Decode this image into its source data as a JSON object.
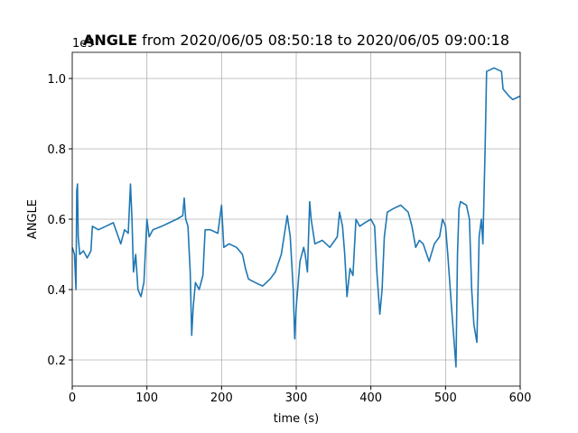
{
  "chart_data": {
    "type": "line",
    "title_bold": "ANGLE",
    "title": "from 2020/06/05 08:50:18 to 2020/06/05 09:00:18",
    "x_label": "time (s)",
    "y_label": "ANGLE",
    "y_offset_label": "1e9",
    "x": [
      0,
      3,
      5,
      6,
      7,
      8,
      10,
      15,
      20,
      25,
      27,
      35,
      45,
      55,
      60,
      65,
      70,
      75,
      78,
      80,
      82,
      85,
      88,
      92,
      96,
      100,
      103,
      108,
      120,
      130,
      140,
      148,
      150,
      152,
      155,
      158,
      160,
      162,
      165,
      170,
      175,
      178,
      185,
      195,
      200,
      203,
      210,
      220,
      228,
      232,
      236,
      245,
      255,
      265,
      272,
      280,
      288,
      292,
      296,
      298,
      300,
      305,
      310,
      312,
      315,
      318,
      320,
      325,
      335,
      345,
      355,
      358,
      362,
      365,
      368,
      372,
      376,
      380,
      385,
      392,
      400,
      405,
      408,
      412,
      415,
      418,
      422,
      430,
      440,
      450,
      455,
      460,
      465,
      470,
      478,
      485,
      492,
      496,
      500,
      503,
      508,
      514,
      516,
      518,
      520,
      528,
      532,
      535,
      538,
      542,
      545,
      548,
      550,
      553,
      555,
      565,
      575,
      577,
      585,
      590,
      600
    ],
    "series": [
      {
        "name": "ANGLE",
        "color": "#1f77b4",
        "values": [
          0.52,
          0.5,
          0.4,
          0.68,
          0.7,
          0.55,
          0.5,
          0.51,
          0.49,
          0.51,
          0.58,
          0.57,
          0.58,
          0.59,
          0.56,
          0.53,
          0.57,
          0.56,
          0.7,
          0.6,
          0.45,
          0.5,
          0.4,
          0.38,
          0.42,
          0.6,
          0.55,
          0.57,
          0.58,
          0.59,
          0.6,
          0.61,
          0.66,
          0.6,
          0.58,
          0.45,
          0.27,
          0.35,
          0.42,
          0.4,
          0.44,
          0.57,
          0.57,
          0.56,
          0.64,
          0.52,
          0.53,
          0.52,
          0.5,
          0.46,
          0.43,
          0.42,
          0.41,
          0.43,
          0.45,
          0.5,
          0.61,
          0.55,
          0.4,
          0.26,
          0.35,
          0.48,
          0.52,
          0.5,
          0.45,
          0.65,
          0.6,
          0.53,
          0.54,
          0.52,
          0.55,
          0.62,
          0.58,
          0.5,
          0.38,
          0.46,
          0.44,
          0.6,
          0.58,
          0.59,
          0.6,
          0.58,
          0.45,
          0.33,
          0.4,
          0.55,
          0.62,
          0.63,
          0.64,
          0.62,
          0.58,
          0.52,
          0.54,
          0.53,
          0.48,
          0.53,
          0.55,
          0.6,
          0.58,
          0.5,
          0.35,
          0.18,
          0.5,
          0.63,
          0.65,
          0.64,
          0.6,
          0.4,
          0.3,
          0.25,
          0.55,
          0.6,
          0.53,
          0.8,
          1.02,
          1.03,
          1.02,
          0.97,
          0.95,
          0.94,
          0.95
        ]
      }
    ],
    "xlim": [
      0,
      600
    ],
    "xticks": [
      0,
      100,
      200,
      300,
      400,
      500,
      600
    ],
    "ylim": [
      0.1256,
      1.0744
    ],
    "yticks": [
      {
        "value": 0.2,
        "label": "0.2"
      },
      {
        "value": 0.4,
        "label": "0.4"
      },
      {
        "value": 0.6,
        "label": "0.6"
      },
      {
        "value": 0.8,
        "label": "0.8"
      },
      {
        "value": 1.0,
        "label": "1.0"
      }
    ],
    "grid": true
  }
}
